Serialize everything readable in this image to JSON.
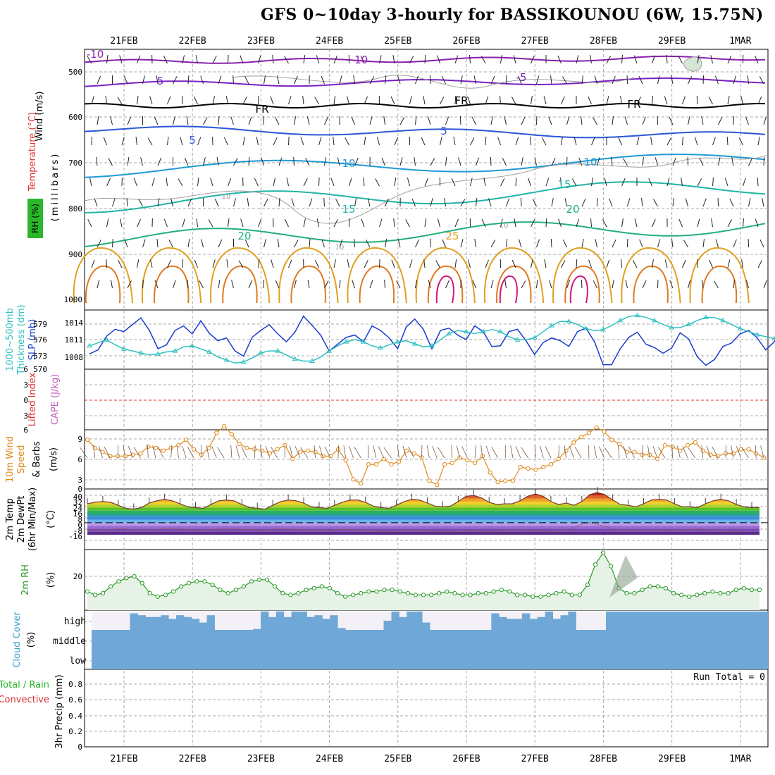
{
  "title": "GFS 0~10day 3-hourly for BASSIKOUNOU (6W, 15.75N)",
  "dates": [
    "21FEB",
    "22FEB",
    "23FEB",
    "24FEB",
    "25FEB",
    "26FEB",
    "27FEB",
    "28FEB",
    "29FEB",
    "1MAR"
  ],
  "colors": {
    "temp_minus10": "#8b1fb0",
    "temp_minus5": "#7a21c4",
    "temp_fr": "#000000",
    "temp_5": "#2a56d6",
    "temp_10": "#1f9ad6",
    "temp_15": "#22b4a6",
    "temp_20": "#23b07a",
    "temp_25": "#e0a020",
    "temp_30": "#e07a20",
    "temp_35": "#d01a7a",
    "rh_contour": "#a0a0a0",
    "slp": "#1a3ccc",
    "thickness": "#30c0c0",
    "lifted_zero": "#e03030",
    "wind": "#e08a1a",
    "rh2m": "#2a9a2a",
    "rh2m_fill": "#e6f2e6",
    "cloud": "#6fa8d6",
    "cloud_bg": "#f4f0f8"
  },
  "panels": {
    "upper": {
      "ylabel_wind": "Wind (m/s)",
      "ylabel_temp": "Temperature (°C)",
      "ylabel_mb": "(millibars)",
      "rh_badge": "RH (%)",
      "ticks": [
        "500",
        "600",
        "700",
        "800",
        "900",
        "1000"
      ],
      "contour_labels": [
        "-10",
        "-10",
        "-5",
        "-5",
        "FR",
        "FR",
        "FR",
        "5",
        "5",
        "10",
        "10",
        "15",
        "15",
        "20",
        "20",
        "25",
        "10",
        "10",
        "10"
      ]
    },
    "slp": {
      "ylabel_thick_a": "1000~500mb",
      "ylabel_thick_b": "Thickness (dm)",
      "ylabel_slp": "SLP (mb)",
      "ticks_thick": [
        "579",
        "576",
        "573",
        "570"
      ],
      "ticks_slp": [
        "1014",
        "1011",
        "1008"
      ]
    },
    "lifted": {
      "ylabel_a": "Lifted Index",
      "ylabel_b": "CAPE (J/kg)",
      "ticks": [
        "3",
        "0",
        "3",
        "6"
      ],
      "top_tick": "6"
    },
    "wind10": {
      "ylabel_a": "10m Wind",
      "ylabel_b": "Speed",
      "ylabel_c": "& Barbs",
      "unit": "(m/s)",
      "ticks": [
        "9",
        "6",
        "3",
        "0"
      ]
    },
    "temp2m": {
      "ylabel_a": "2m Temp",
      "ylabel_b": "2m DewPt",
      "ylabel_c": "(6hr Min/Max)",
      "unit": "(°C)",
      "ticks": [
        "40",
        "32",
        "24",
        "16",
        "8",
        "0",
        "-8",
        "-16"
      ]
    },
    "rh2m": {
      "ylabel": "2m RH",
      "unit": "(%)",
      "ticks": [
        "20"
      ]
    },
    "cloud": {
      "ylabel": "Cloud Cover",
      "unit": "(%)",
      "levels": [
        "high",
        "middle",
        "low"
      ]
    },
    "precip": {
      "ylabel_a": "Total / Rain",
      "ylabel_b": "Convective",
      "ylabel_c": "3hr Precip (mm)",
      "run_total": "Run Total = 0",
      "ticks": [
        "0.8",
        "0.6",
        "0.4",
        "0.2",
        "0"
      ]
    }
  },
  "chart_data": [
    {
      "type": "line",
      "name": "sea-level-pressure",
      "xlabel": "",
      "ylabel": "SLP (mb)",
      "ylim": [
        1006,
        1016
      ],
      "x_start": "20FEB 12Z",
      "step_hours": 3,
      "values": [
        1008.5,
        1009.2,
        1011.6,
        1012.8,
        1012.4,
        1013.6,
        1014.8,
        1012.6,
        1009.4,
        1010.1,
        1012.6,
        1013.4,
        1012.0,
        1014.3,
        1012.1,
        1010.8,
        1011.3,
        1009.0,
        1008.1,
        1011.4,
        1012.6,
        1013.6,
        1012.0,
        1010.6,
        1012.3,
        1015.1,
        1013.5,
        1011.8,
        1009.0,
        1010.2,
        1011.4,
        1011.8,
        1010.6,
        1013.4,
        1012.6,
        1011.3,
        1009.4,
        1013.2,
        1014.6,
        1012.8,
        1009.4,
        1012.6,
        1013.0,
        1011.8,
        1011.0,
        1013.4,
        1012.4,
        1009.8,
        1009.9,
        1012.4,
        1012.8,
        1010.8,
        1008.4,
        1010.5,
        1011.3,
        1010.8,
        1009.8,
        1012.4,
        1013.0,
        1010.6,
        1006.6,
        1006.6,
        1009.4,
        1011.4,
        1012.3,
        1010.2,
        1009.6,
        1008.6,
        1009.5,
        1012.2,
        1011.1,
        1008.0,
        1006.5,
        1007.5,
        1009.8,
        1010.4,
        1012.0,
        1012.6,
        1011.3,
        1009.2,
        1010.6,
        1013.4,
        1014.4,
        1012.0,
        1010.6,
        1012.8,
        1013.3,
        1011.6,
        1011.0,
        1013.8,
        1012.8,
        1010.6,
        1009.4,
        1012.0,
        1012.6,
        1010.3,
        1009.6,
        1011.2,
        1011.0,
        1011.6
      ]
    },
    {
      "type": "line",
      "name": "thickness-1000-500",
      "ylabel": "1000~500mb Thickness (dm)",
      "ylim": [
        570,
        582
      ],
      "x_start": "20FEB 12Z",
      "step_hours": 3,
      "values": [
        574.6,
        575.2,
        575.8,
        574.8,
        574.0,
        573.6,
        573.2,
        572.8,
        573.0,
        573.4,
        573.6,
        574.4,
        574.6,
        574.0,
        573.4,
        572.4,
        571.8,
        571.2,
        571.4,
        572.2,
        573.2,
        573.6,
        573.6,
        572.8,
        572.0,
        571.6,
        571.6,
        572.4,
        573.6,
        574.6,
        575.4,
        575.8,
        575.4,
        574.6,
        574.2,
        574.8,
        575.4,
        575.6,
        575.0,
        574.4,
        574.6,
        575.8,
        577.0,
        577.6,
        577.4,
        577.0,
        577.4,
        577.8,
        577.4,
        576.4,
        575.8,
        575.8,
        576.2,
        577.4,
        578.6,
        579.4,
        579.4,
        578.8,
        578.0,
        577.6,
        577.8,
        578.6,
        579.6,
        580.4,
        580.6,
        580.2,
        579.6,
        578.8,
        578.2,
        578.2,
        578.8,
        579.6,
        580.2,
        580.2,
        579.6,
        578.8,
        578.0,
        577.4,
        576.8,
        576.4,
        576.0,
        576.2,
        577.0,
        577.4,
        577.2,
        576.6,
        576.4,
        577.0,
        577.8,
        578.6,
        578.8,
        578.6,
        578.4,
        578.6,
        578.6,
        578.2,
        577.4,
        576.4,
        575.8,
        575.8
      ]
    },
    {
      "type": "line",
      "name": "lifted-index",
      "ylabel": "Lifted Index",
      "ylim": [
        -6,
        6
      ],
      "values": [
        0
      ]
    },
    {
      "type": "line",
      "name": "10m-wind-speed",
      "ylabel": "10m Wind Speed (m/s)",
      "ylim": [
        0,
        10
      ],
      "x_start": "20FEB 12Z",
      "step_hours": 3,
      "values": [
        7.2,
        6.0,
        5.4,
        4.8,
        4.8,
        4.8,
        5.0,
        5.2,
        6.2,
        6.0,
        5.6,
        6.0,
        6.4,
        7.2,
        5.8,
        5.0,
        6.0,
        8.2,
        9.2,
        8.0,
        6.6,
        6.0,
        5.8,
        5.6,
        5.2,
        5.8,
        6.4,
        4.4,
        5.4,
        5.6,
        5.4,
        4.8,
        4.8,
        5.8,
        4.2,
        1.4,
        0.8,
        3.6,
        3.6,
        4.4,
        3.6,
        4.0,
        5.6,
        5.2,
        4.6,
        1.2,
        0.6,
        3.6,
        3.8,
        4.6,
        4.2,
        3.8,
        4.8,
        2.4,
        1.0,
        1.2,
        1.2,
        3.2,
        3.0,
        2.8,
        3.2,
        3.6,
        4.4,
        5.6,
        6.8,
        7.6,
        8.2,
        9.0,
        8.4,
        7.2,
        6.6,
        5.4,
        5.4,
        5.0,
        5.0,
        4.4,
        6.4,
        6.2,
        5.6,
        6.4,
        6.8,
        5.6,
        5.0,
        4.8,
        5.2,
        5.2,
        5.8,
        5.8,
        5.2,
        4.6
      ]
    },
    {
      "type": "area",
      "name": "2m-temperature",
      "ylabel": "2m Temp (°C)",
      "ylim": [
        -16,
        40
      ],
      "x_start": "20FEB 12Z",
      "step_hours": 3,
      "values": [
        25,
        27,
        28,
        27,
        23,
        19,
        18,
        20,
        26,
        29,
        31,
        29,
        25,
        21,
        20,
        19,
        24,
        29,
        30,
        29,
        24,
        20,
        19,
        18,
        23,
        28,
        30,
        29,
        26,
        21,
        20,
        19,
        23,
        27,
        30,
        30,
        27,
        22,
        20,
        19,
        23,
        28,
        31,
        30,
        26,
        22,
        21,
        22,
        28,
        35,
        36,
        33,
        27,
        24,
        25,
        25,
        29,
        35,
        38,
        35,
        28,
        24,
        26,
        23,
        28,
        37,
        40,
        37,
        30,
        24,
        23,
        21,
        25,
        30,
        31,
        30,
        25,
        21,
        21,
        20,
        25,
        29,
        31,
        29,
        24,
        21,
        20,
        20
      ]
    },
    {
      "type": "line",
      "name": "2m-dewpoint",
      "ylabel": "2m DewPt (°C)",
      "ylim": [
        -16,
        40
      ],
      "x_start": "20FEB 12Z",
      "step_hours": 3,
      "values": [
        -9,
        -10,
        -10,
        -9,
        -8,
        -8,
        -9,
        -10,
        -10,
        -9,
        -8,
        -8,
        -8,
        -9,
        -10,
        -10,
        -9,
        -8,
        -8,
        -8,
        -9,
        -9,
        -10,
        -10,
        -9,
        -8,
        -8,
        -9,
        -9,
        -10,
        -10,
        -10,
        -9,
        -9,
        -9,
        -10,
        -10,
        -11,
        -12,
        -12,
        -11,
        -10,
        -10,
        -11,
        -11,
        -12,
        -12,
        -12,
        -11,
        -11,
        -11,
        -12,
        -12,
        -12,
        -11,
        -10,
        -9,
        -10,
        -11,
        -12,
        -12,
        -11,
        -10,
        -7,
        -2,
        0,
        -2,
        -5,
        -8,
        -10,
        -11,
        -11,
        -10,
        -10,
        -10,
        -11,
        -11,
        -10,
        -9,
        -8,
        -9,
        -10,
        -11,
        -12,
        -12,
        -12
      ]
    },
    {
      "type": "area",
      "name": "2m-relative-humidity",
      "ylabel": "2m RH (%)",
      "ylim": [
        0,
        35
      ],
      "x_start": "20FEB 12Z",
      "step_hours": 3,
      "values": [
        11,
        9,
        10,
        14,
        17,
        19,
        20,
        16,
        10,
        8,
        9,
        11,
        14,
        16,
        17,
        17,
        15,
        12,
        10,
        12,
        14,
        17,
        18,
        18,
        14,
        10,
        9,
        10,
        12,
        13,
        14,
        13,
        10,
        8,
        9,
        10,
        11,
        11,
        12,
        12,
        11,
        10,
        9,
        9,
        9,
        10,
        11,
        10,
        9,
        9,
        10,
        10,
        11,
        12,
        11,
        9,
        9,
        8,
        8,
        9,
        10,
        11,
        9,
        9,
        15,
        27,
        34,
        26,
        13,
        10,
        10,
        12,
        14,
        14,
        13,
        10,
        9,
        8,
        9,
        10,
        11,
        10,
        10,
        12,
        13,
        12,
        12
      ]
    },
    {
      "type": "bar",
      "name": "high-cloud-cover",
      "ylabel": "Cloud Cover (%)",
      "ylim": [
        0,
        100
      ],
      "x_start": "20FEB 12Z",
      "step_hours": 3,
      "values": [
        0,
        0,
        0,
        0,
        0,
        90,
        80,
        70,
        70,
        80,
        60,
        80,
        70,
        60,
        40,
        80,
        0,
        0,
        0,
        0,
        0,
        5,
        100,
        70,
        100,
        70,
        100,
        100,
        70,
        80,
        60,
        80,
        10,
        0,
        0,
        0,
        0,
        0,
        50,
        100,
        70,
        100,
        100,
        40,
        0,
        0,
        0,
        0,
        0,
        0,
        0,
        0,
        90,
        70,
        60,
        60,
        90,
        60,
        70,
        100,
        60,
        80,
        100,
        0,
        0,
        0,
        0,
        20,
        70,
        50,
        70,
        70,
        60,
        90,
        90,
        80,
        10,
        0,
        0,
        0,
        0,
        0,
        0,
        0,
        0,
        0,
        0,
        0
      ]
    },
    {
      "type": "bar",
      "name": "3hr-precipitation",
      "ylabel": "3hr Precip (mm)",
      "ylim": [
        0,
        0.9
      ],
      "values": [
        0
      ]
    }
  ]
}
